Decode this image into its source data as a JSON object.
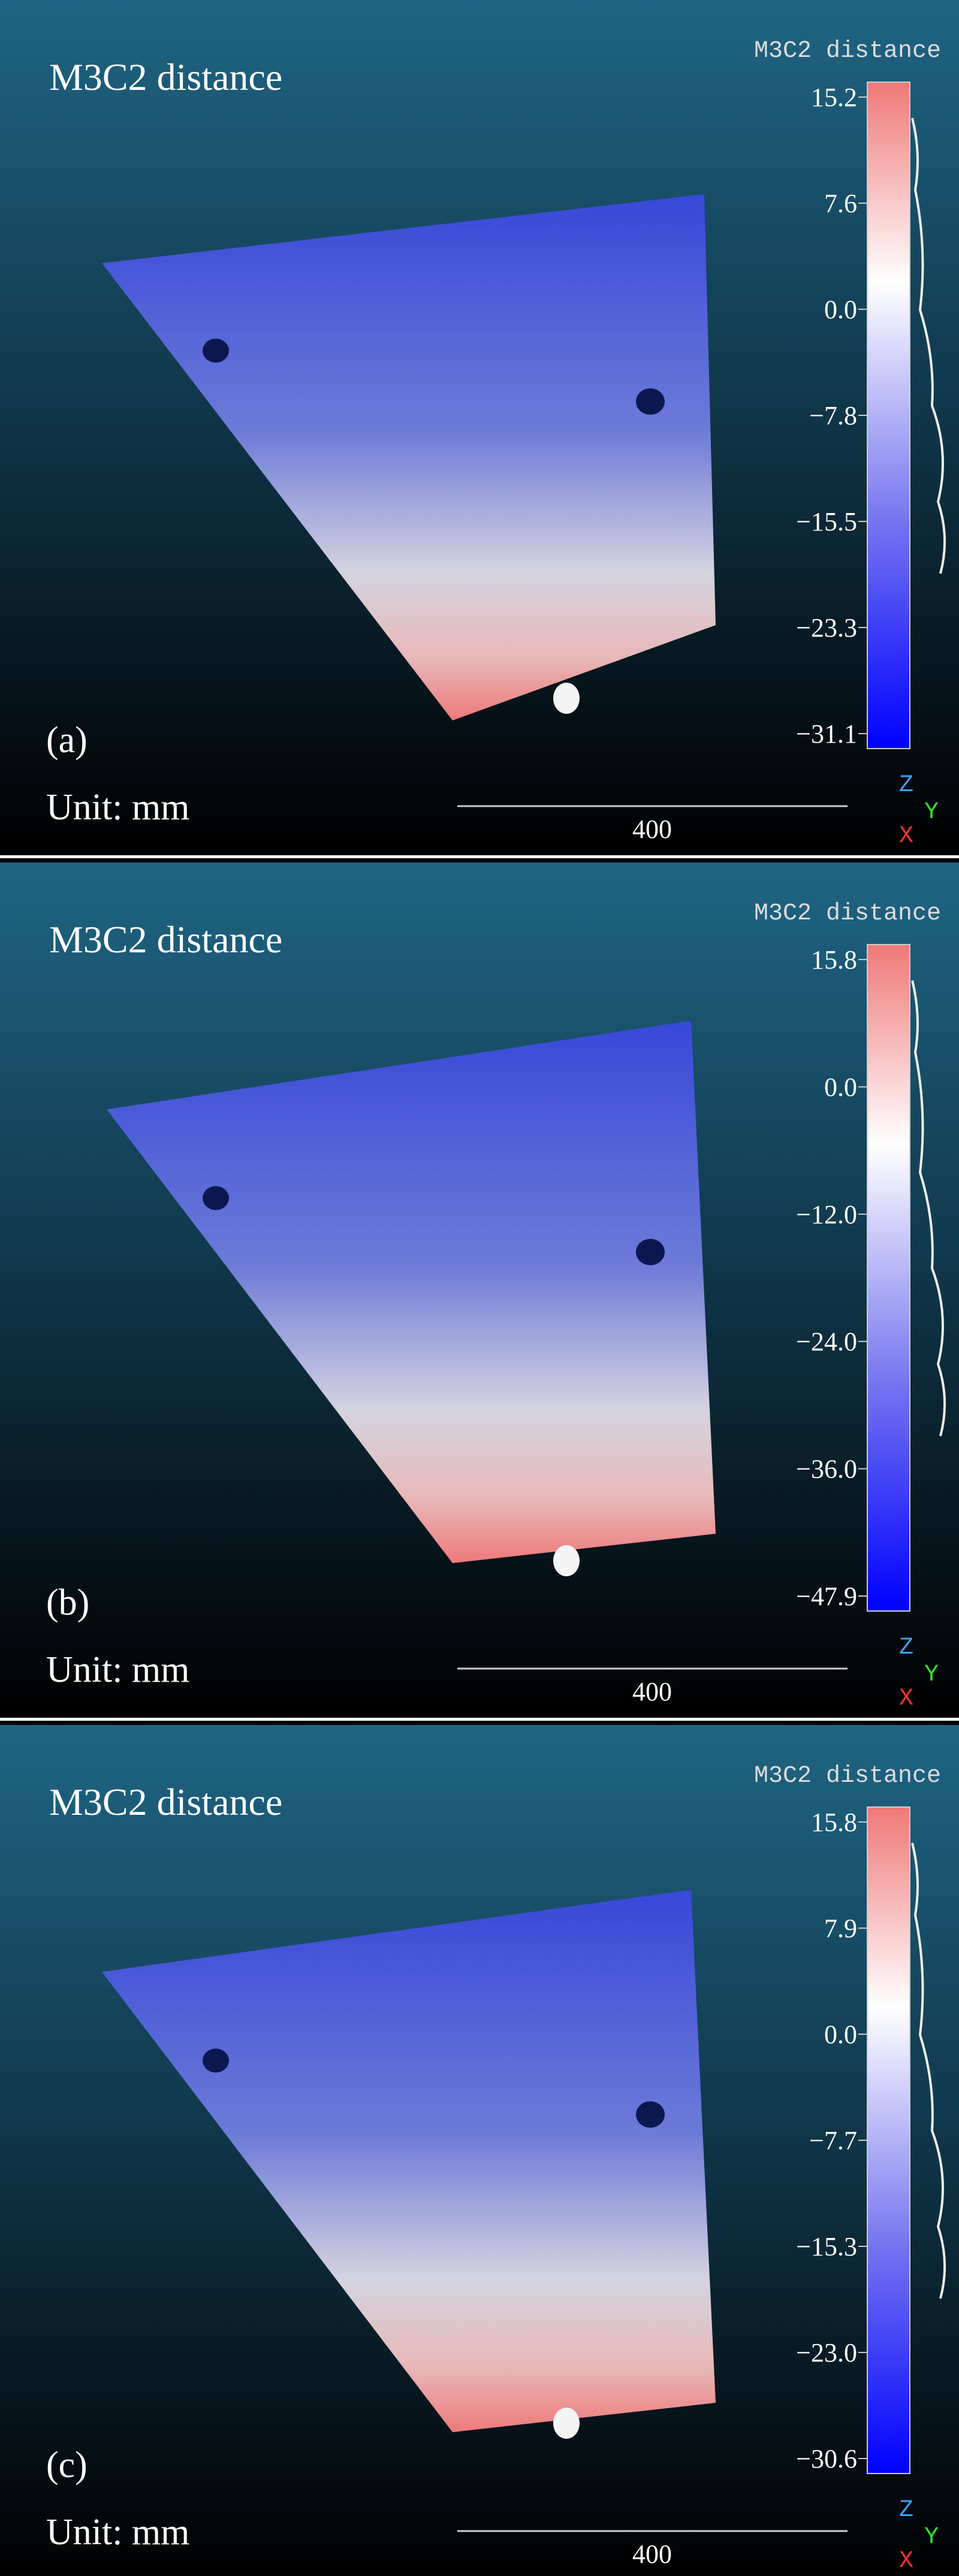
{
  "panels": [
    {
      "title": "M3C2 distance",
      "label": "(a)",
      "unit": "Unit: mm",
      "scale_bar": "400",
      "colorbar": {
        "title": "M3C2 distance",
        "ticks": [
          "15.2",
          "7.6",
          "0.0",
          "−7.8",
          "−15.5",
          "−23.3",
          "−31.1"
        ]
      },
      "axes": [
        "Z",
        "Y",
        "X"
      ]
    },
    {
      "title": "M3C2 distance",
      "label": "(b)",
      "unit": "Unit: mm",
      "scale_bar": "400",
      "colorbar": {
        "title": "M3C2 distance",
        "ticks": [
          "15.8",
          "0.0",
          "−12.0",
          "−24.0",
          "−36.0",
          "−47.9"
        ]
      },
      "axes": [
        "Z",
        "Y",
        "X"
      ]
    },
    {
      "title": "M3C2 distance",
      "label": "(c)",
      "unit": "Unit: mm",
      "scale_bar": "400",
      "colorbar": {
        "title": "M3C2 distance",
        "ticks": [
          "15.8",
          "7.9",
          "0.0",
          "−7.7",
          "−15.3",
          "−23.0",
          "−30.6"
        ]
      },
      "axes": [
        "Z",
        "Y",
        "X"
      ]
    }
  ]
}
